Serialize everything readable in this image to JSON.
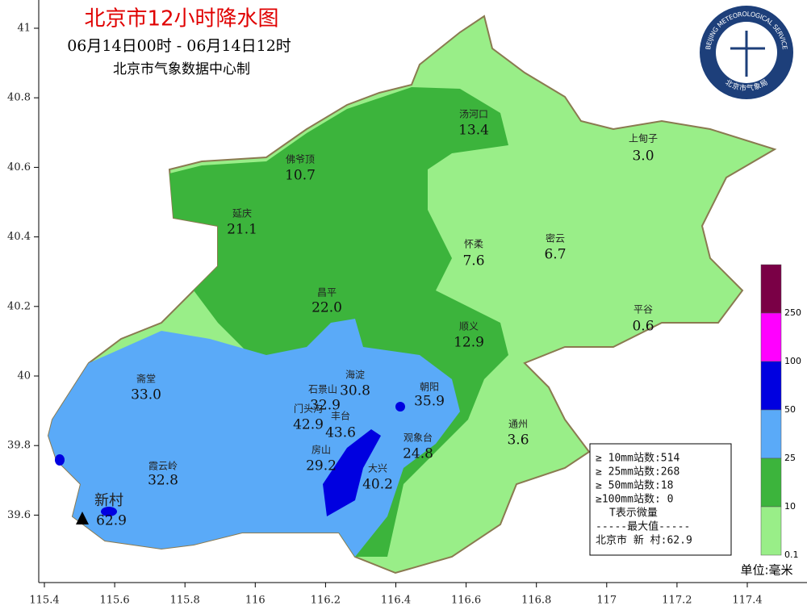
{
  "header": {
    "title": "北京市12小时降水图",
    "period": "06月14日00时 - 06月14日12时",
    "producer": "北京市气象数据中心制"
  },
  "logo": {
    "english": "BEIJING METEOROLOGICAL SERVICE",
    "chinese": "北京市气象局"
  },
  "axes": {
    "lat_ticks": [
      41,
      40.8,
      40.6,
      40.4,
      40.2,
      40,
      39.8,
      39.6
    ],
    "lon_ticks": [
      115.4,
      115.6,
      115.8,
      116,
      116.2,
      116.4,
      116.6,
      116.8,
      117,
      117.2,
      117.4
    ]
  },
  "stations": [
    {
      "name": "汤河口",
      "value": "13.4"
    },
    {
      "name": "上甸子",
      "value": "3.0"
    },
    {
      "name": "佛爷顶",
      "value": "10.7"
    },
    {
      "name": "延庆",
      "value": "21.1"
    },
    {
      "name": "怀柔",
      "value": "7.6"
    },
    {
      "name": "密云",
      "value": "6.7"
    },
    {
      "name": "昌平",
      "value": "22.0"
    },
    {
      "name": "平谷",
      "value": "0.6"
    },
    {
      "name": "顺义",
      "value": "12.9"
    },
    {
      "name": "海淀",
      "value": "30.8"
    },
    {
      "name": "朝阳",
      "value": "35.9"
    },
    {
      "name": "斋堂",
      "value": "33.0"
    },
    {
      "name": "石景山",
      "value": "32.9"
    },
    {
      "name": "门头沟",
      "value": "42.9"
    },
    {
      "name": "丰台",
      "value": "43.6"
    },
    {
      "name": "通州",
      "value": "3.6"
    },
    {
      "name": "观象台",
      "value": "24.8"
    },
    {
      "name": "房山",
      "value": "29.2"
    },
    {
      "name": "大兴",
      "value": "40.2"
    },
    {
      "name": "霞云岭",
      "value": "32.8"
    },
    {
      "name": "新村",
      "value": "62.9"
    }
  ],
  "legend": {
    "levels": [
      250,
      100,
      50,
      25,
      10,
      0.1
    ],
    "colors": [
      "#7a0046",
      "#ff00ff",
      "#0000e0",
      "#5aaaf8",
      "#3cb43c",
      "#99ee88"
    ],
    "unit": "单位:毫米"
  },
  "stats": {
    "lines": [
      "≥ 10mm站数:514",
      "≥ 25mm站数:268",
      "≥ 50mm站数:18",
      "≥100mm站数: 0",
      "T表示微量",
      "-----最大值-----",
      "北京市 新  村:62.9"
    ]
  }
}
